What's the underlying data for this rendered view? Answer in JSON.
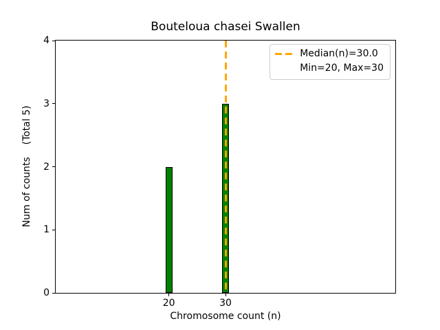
{
  "title": "Bouteloua chasei Swallen",
  "legend": {
    "line1": "Median(n)=30.0",
    "line2": "Min=20, Max=30"
  },
  "colors": {
    "background": "#ffffff",
    "text": "#000000",
    "bar_fill": "#008000",
    "bar_edge": "#000000",
    "median_line": "#FFA500",
    "legend_border": "#cccccc",
    "axis": "#000000"
  },
  "chart_data": {
    "type": "bar",
    "title": "Bouteloua chasei Swallen",
    "xlabel": "Chromosome count (n)",
    "ylabel": "Num of counts    (Total 5)",
    "x": [
      20,
      30
    ],
    "values": [
      2,
      3
    ],
    "total_counts": 5,
    "xlim": [
      0,
      60
    ],
    "ylim": [
      0,
      4
    ],
    "xticks": [
      20,
      30
    ],
    "yticks": [
      0,
      1,
      2,
      3,
      4
    ],
    "median": 30.0,
    "min": 20,
    "max": 30,
    "median_line": {
      "x": 30.0,
      "style": "dashed",
      "color": "#FFA500"
    },
    "legend_position": "upper right",
    "legend_entries": [
      "Median(n)=30.0",
      "Min=20, Max=30"
    ],
    "grid": false
  }
}
